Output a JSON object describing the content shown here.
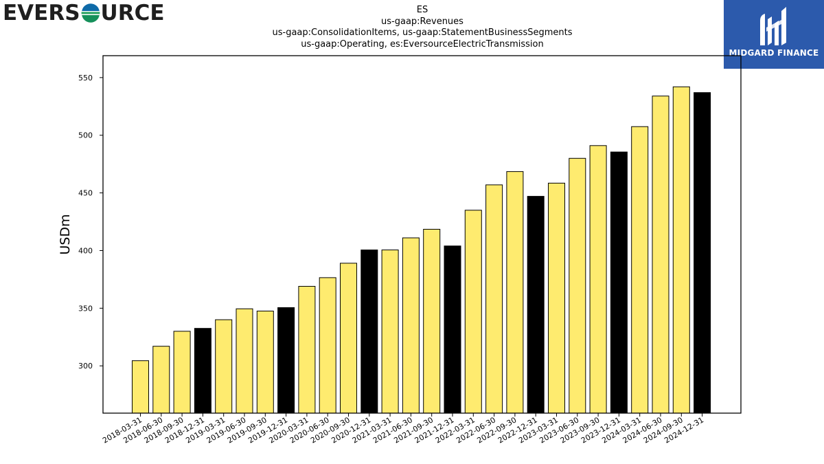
{
  "logos": {
    "left_text_before": "EVERS",
    "left_text_after": "URCE",
    "left_icon": "eversource-o-icon",
    "right_text": "MIDGARD FINANCE",
    "right_icon": "midgard-mark-icon",
    "right_bg": "#2c5aac"
  },
  "title_lines": [
    "ES",
    "us-gaap:Revenues",
    "us-gaap:ConsolidationItems, us-gaap:StatementBusinessSegments",
    "us-gaap:Operating, es:EversourceElectricTransmission"
  ],
  "chart_data": {
    "type": "bar",
    "title": "ES",
    "ylabel": "USDm",
    "xlabel": "",
    "ylim": [
      259,
      569
    ],
    "yticks": [
      300,
      350,
      400,
      450,
      500,
      550
    ],
    "colors": {
      "quarter": "#feeb6f",
      "year_end": "#000000"
    },
    "categories": [
      "2018-03-31",
      "2018-06-30",
      "2018-09-30",
      "2018-12-31",
      "2019-03-31",
      "2019-06-30",
      "2019-09-30",
      "2019-12-31",
      "2020-03-31",
      "2020-06-30",
      "2020-09-30",
      "2020-12-31",
      "2021-03-31",
      "2021-06-30",
      "2021-09-30",
      "2021-12-31",
      "2022-03-31",
      "2022-06-30",
      "2022-09-30",
      "2022-12-31",
      "2023-03-31",
      "2023-06-30",
      "2023-09-30",
      "2023-12-31",
      "2024-03-31",
      "2024-06-30",
      "2024-09-30",
      "2024-12-31"
    ],
    "values": [
      304.5,
      317,
      330,
      332.5,
      340,
      349.5,
      347.5,
      350.5,
      369,
      376.5,
      389,
      400.5,
      400.5,
      411,
      418.5,
      404,
      435,
      457,
      468.5,
      447,
      458.5,
      480,
      491,
      485.5,
      507.5,
      534,
      542,
      537
    ]
  }
}
